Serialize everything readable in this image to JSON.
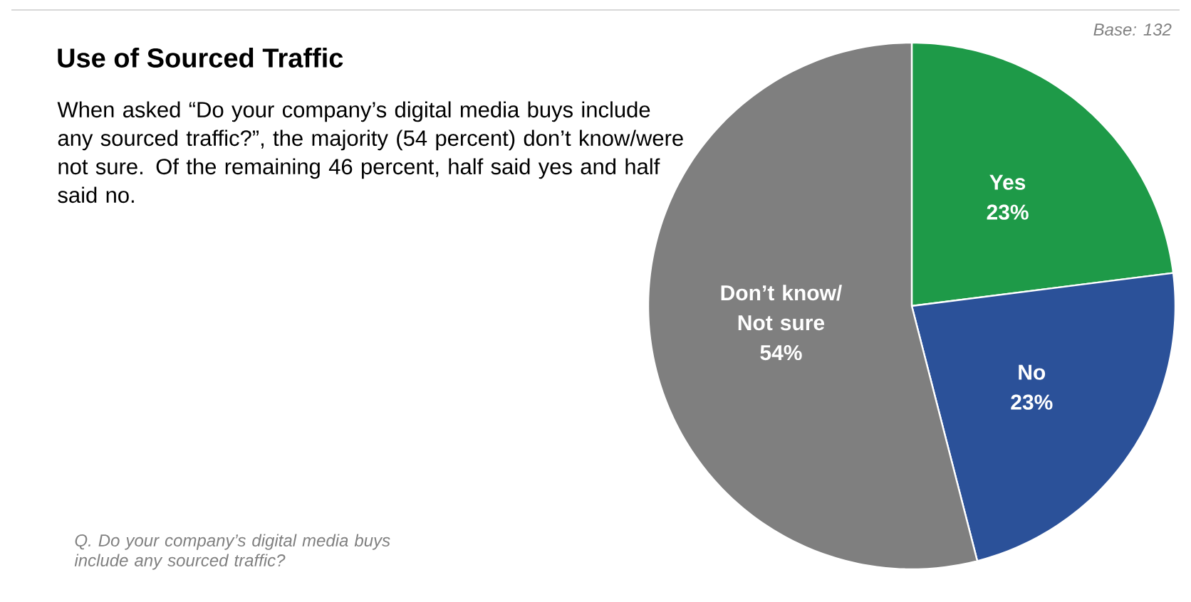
{
  "chart_data": {
    "type": "pie",
    "title": "Use of Sourced Traffic",
    "subtitle": "When asked “Do your company’s digital media buys include any sourced traffic?”, the majority (54 percent) don’t know/were not sure. Of the remaining 46 percent, half said yes and half said no.",
    "annotations": [
      "Base: 132",
      "Q. Do your company’s digital media buys include any sourced traffic?"
    ],
    "categories": [
      "Yes",
      "No",
      "Don’t know/ Not sure"
    ],
    "values": [
      23,
      23,
      54
    ],
    "value_labels": [
      "23%",
      "23%",
      "54%"
    ],
    "colors": [
      "#1e9a48",
      "#2b5199",
      "#7f7f7f"
    ]
  }
}
